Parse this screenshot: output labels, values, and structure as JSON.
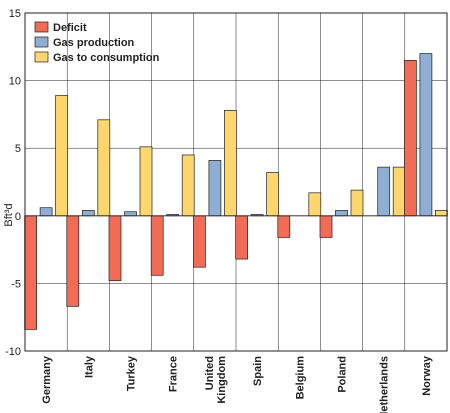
{
  "chart_data": {
    "type": "bar",
    "ylabel": "Bft³d",
    "ylim": [
      -10,
      15
    ],
    "yticks": [
      15,
      10,
      5,
      0,
      -5,
      -10
    ],
    "grid": true,
    "legend_position": "top-left",
    "categories": [
      [
        "Germany"
      ],
      [
        "Italy"
      ],
      [
        "Turkey"
      ],
      [
        "France"
      ],
      [
        "United",
        "Kingdom"
      ],
      [
        "Spain"
      ],
      [
        "Belgium"
      ],
      [
        "Poland"
      ],
      [
        "Netherlands"
      ],
      [
        "Norway"
      ]
    ],
    "series": [
      {
        "name": "Deficit",
        "color": "#f26b55",
        "values": [
          -8.4,
          -6.7,
          -4.8,
          -4.4,
          -3.8,
          -3.2,
          -1.6,
          -1.6,
          0,
          11.5
        ]
      },
      {
        "name": "Gas production",
        "color": "#8eafd3",
        "values": [
          0.6,
          0.4,
          0.3,
          0.1,
          4.1,
          0.1,
          0,
          0.4,
          3.6,
          12.0
        ]
      },
      {
        "name": "Gas to consumption",
        "color": "#fdd66c",
        "values": [
          8.9,
          7.1,
          5.1,
          4.5,
          7.8,
          3.2,
          1.7,
          1.9,
          3.6,
          0.4
        ]
      }
    ]
  }
}
